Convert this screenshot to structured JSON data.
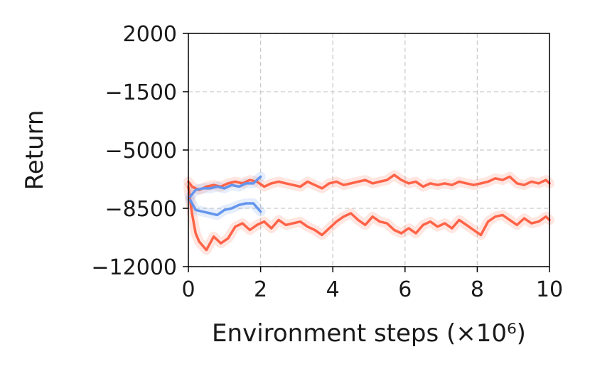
{
  "chart_data": {
    "type": "line",
    "title": "",
    "xlabel": "Environment steps (×10⁶)",
    "ylabel": "Return",
    "xlim": [
      0,
      10
    ],
    "ylim": [
      -12000,
      2000
    ],
    "xticks": [
      0,
      2,
      4,
      6,
      8,
      10
    ],
    "xtick_labels": [
      "0",
      "2",
      "4",
      "6",
      "8",
      "10"
    ],
    "yticks": [
      2000,
      -1500,
      -5000,
      -8500,
      -12000
    ],
    "ytick_labels": [
      "2000",
      "−1500",
      "−5000",
      "−8500",
      "−12000"
    ],
    "grid": true,
    "legend": "none",
    "series": [
      {
        "color": "#ff6347",
        "x": [
          0,
          0.1,
          0.2,
          0.3,
          0.5,
          0.7,
          0.9,
          1.1,
          1.3,
          1.5,
          1.7,
          1.9,
          2.1,
          2.3,
          2.5,
          2.7,
          2.9,
          3.1,
          3.3,
          3.5,
          3.7,
          3.9,
          4.1,
          4.3,
          4.5,
          4.7,
          4.9,
          5.1,
          5.3,
          5.5,
          5.7,
          5.9,
          6.1,
          6.3,
          6.5,
          6.7,
          6.9,
          7.1,
          7.3,
          7.5,
          7.7,
          7.9,
          8.1,
          8.3,
          8.5,
          8.7,
          8.9,
          9.1,
          9.3,
          9.5,
          9.7,
          9.9,
          10
        ],
        "values": [
          -6900,
          -7200,
          -7300,
          -7400,
          -7200,
          -7100,
          -7200,
          -7000,
          -6900,
          -7000,
          -6800,
          -6900,
          -7200,
          -7000,
          -6900,
          -7000,
          -7100,
          -7200,
          -6900,
          -7100,
          -7300,
          -7000,
          -6900,
          -7100,
          -7000,
          -6900,
          -6800,
          -7000,
          -6900,
          -6800,
          -6500,
          -6800,
          -7000,
          -6900,
          -7200,
          -7000,
          -7100,
          -7000,
          -7100,
          -6900,
          -7000,
          -7100,
          -7000,
          -6900,
          -6700,
          -6800,
          -6600,
          -7000,
          -7100,
          -6900,
          -7000,
          -6800,
          -7000
        ]
      },
      {
        "color": "#ff6347",
        "x": [
          0,
          0.1,
          0.2,
          0.3,
          0.5,
          0.7,
          0.9,
          1.1,
          1.3,
          1.5,
          1.7,
          1.9,
          2.1,
          2.3,
          2.5,
          2.7,
          2.9,
          3.1,
          3.3,
          3.5,
          3.7,
          3.9,
          4.1,
          4.3,
          4.5,
          4.7,
          4.9,
          5.1,
          5.3,
          5.5,
          5.7,
          5.9,
          6.1,
          6.3,
          6.5,
          6.7,
          6.9,
          7.1,
          7.3,
          7.5,
          7.7,
          7.9,
          8.1,
          8.3,
          8.5,
          8.7,
          8.9,
          9.1,
          9.3,
          9.5,
          9.7,
          9.9,
          10
        ],
        "values": [
          -7200,
          -8800,
          -10000,
          -10500,
          -11000,
          -10200,
          -10600,
          -10300,
          -9600,
          -9400,
          -9800,
          -9500,
          -9300,
          -9700,
          -9200,
          -9500,
          -9400,
          -9300,
          -9600,
          -9800,
          -10100,
          -9700,
          -9300,
          -9000,
          -8800,
          -9200,
          -9500,
          -9000,
          -9300,
          -9400,
          -9800,
          -10000,
          -9700,
          -10000,
          -9500,
          -9300,
          -9600,
          -9400,
          -9700,
          -9200,
          -9500,
          -9800,
          -10100,
          -9300,
          -9000,
          -8900,
          -9200,
          -9500,
          -9100,
          -9400,
          -9300,
          -9000,
          -9200
        ]
      },
      {
        "color": "#6495ed",
        "x": [
          0.05,
          0.2,
          0.4,
          0.6,
          0.8,
          1.0,
          1.2,
          1.4,
          1.6,
          1.8,
          2.0
        ],
        "values": [
          -7800,
          -7400,
          -7300,
          -7300,
          -7200,
          -7300,
          -7100,
          -7200,
          -7000,
          -7000,
          -6600
        ]
      },
      {
        "color": "#6495ed",
        "x": [
          0.05,
          0.2,
          0.4,
          0.6,
          0.8,
          1.0,
          1.2,
          1.4,
          1.6,
          1.8,
          2.0
        ],
        "values": [
          -8000,
          -8600,
          -8700,
          -8800,
          -8900,
          -8600,
          -8500,
          -8300,
          -8200,
          -8200,
          -8700
        ]
      }
    ]
  }
}
